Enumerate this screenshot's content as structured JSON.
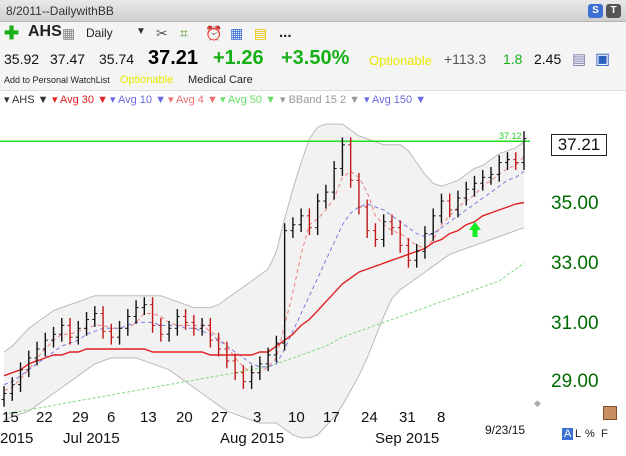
{
  "window": {
    "title": "8/2011--DailywithBB",
    "btn_s": "S",
    "btn_t": "T"
  },
  "toolbar": {
    "symbol": "AHS",
    "period": "Daily",
    "more": "..."
  },
  "quote": {
    "open": "35.92",
    "high": "37.47",
    "low": "35.74",
    "last": "37.21",
    "change": "+1.26",
    "change_pct": "+3.50%",
    "optionable": "Optionable",
    "v1": "+113.3",
    "v2": "1.8",
    "v3": "2.45"
  },
  "subrow": {
    "watchlist": "Add to Personal WatchList",
    "optionable": "Optionable",
    "industry": "Medical Care"
  },
  "legend": [
    {
      "label": "AHS",
      "color": "#333333"
    },
    {
      "label": "Avg 30",
      "color": "#e02020"
    },
    {
      "label": "Avg 10",
      "color": "#6a6ae0"
    },
    {
      "label": "Avg 4",
      "color": "#f07070"
    },
    {
      "label": "Avg 50",
      "color": "#66dd66"
    },
    {
      "label": "BBand 15 2",
      "color": "#9a9a9a"
    },
    {
      "label": "Avg 150",
      "color": "#6a6ae0"
    }
  ],
  "chart": {
    "last_price_box": "37.21",
    "line_label": "37.12",
    "date_label": "9/23/15",
    "price_labels": [
      "35.00",
      "33.00",
      "31.00",
      "29.00"
    ],
    "day_labels": [
      "15",
      "22",
      "29",
      "6",
      "13",
      "20",
      "27",
      "3",
      "10",
      "17",
      "24",
      "31",
      "8"
    ],
    "month_labels": [
      "2015",
      "Jul 2015",
      "Aug 2015",
      "Sep 2015"
    ],
    "scale_opts": [
      "A",
      "L",
      "%",
      "F"
    ],
    "colors": {
      "green_line": "#22dd22",
      "price_text": "#006b00",
      "band_fill": "#f2f2f2"
    }
  },
  "chart_data": {
    "type": "ohlc",
    "ylabels": [
      "35.00",
      "33.00",
      "31.00",
      "29.00"
    ],
    "xlabels": [
      "15",
      "22",
      "29",
      "6",
      "13",
      "20",
      "27",
      "3",
      "10",
      "17",
      "24",
      "31",
      "8"
    ],
    "horizontal_line": 37.12,
    "last": 37.21,
    "closes": [
      28.6,
      28.9,
      29.4,
      29.8,
      30.1,
      30.4,
      30.6,
      30.9,
      30.5,
      30.8,
      31.1,
      31.3,
      30.7,
      30.5,
      30.8,
      31.2,
      31.5,
      31.6,
      30.9,
      30.6,
      30.8,
      31.2,
      31.0,
      30.8,
      30.9,
      30.4,
      30.1,
      29.7,
      29.3,
      29.0,
      29.3,
      29.6,
      29.9,
      30.3,
      34.1,
      34.3,
      34.6,
      34.2,
      35.1,
      35.4,
      36.2,
      37.0,
      35.8,
      34.9,
      34.1,
      33.8,
      34.4,
      34.2,
      33.6,
      33.1,
      33.4,
      34.0,
      34.6,
      35.1,
      34.8,
      35.2,
      35.5,
      35.7,
      35.9,
      36.0,
      36.4,
      36.5,
      36.4,
      37.21
    ],
    "sma30": [
      29.2,
      29.3,
      29.4,
      29.6,
      29.7,
      29.8,
      29.9,
      29.9,
      30.0,
      30.0,
      30.1,
      30.1,
      30.1,
      30.1,
      30.1,
      30.1,
      30.1,
      30.1,
      30.0,
      30.0,
      30.0,
      30.0,
      30.0,
      30.0,
      30.0,
      29.9,
      29.9,
      29.9,
      29.9,
      29.9,
      29.9,
      30.0,
      30.0,
      30.2,
      30.4,
      30.6,
      30.9,
      31.1,
      31.4,
      31.7,
      32.0,
      32.3,
      32.5,
      32.7,
      32.8,
      32.9,
      33.0,
      33.1,
      33.2,
      33.3,
      33.4,
      33.5,
      33.7,
      33.8,
      34.0,
      34.1,
      34.3,
      34.4,
      34.6,
      34.7,
      34.8,
      34.9,
      35.0,
      35.05
    ],
    "sma10": [
      28.9,
      29.0,
      29.2,
      29.4,
      29.6,
      29.8,
      30.0,
      30.2,
      30.3,
      30.4,
      30.6,
      30.7,
      30.8,
      30.8,
      30.8,
      30.9,
      31.0,
      31.0,
      31.0,
      30.9,
      30.9,
      30.9,
      30.8,
      30.8,
      30.7,
      30.6,
      30.4,
      30.2,
      30.0,
      29.8,
      29.6,
      29.5,
      29.5,
      29.6,
      30.1,
      30.7,
      31.3,
      31.9,
      32.5,
      33.1,
      33.7,
      34.3,
      34.7,
      34.9,
      35.0,
      34.9,
      34.8,
      34.6,
      34.4,
      34.2,
      34.0,
      33.9,
      34.0,
      34.2,
      34.4,
      34.6,
      34.8,
      35.0,
      35.2,
      35.4,
      35.6,
      35.8,
      35.9,
      36.1
    ],
    "sma4": [
      28.7,
      28.8,
      29.1,
      29.4,
      29.8,
      30.1,
      30.4,
      30.6,
      30.6,
      30.7,
      30.8,
      30.9,
      30.9,
      30.8,
      30.8,
      30.8,
      31.0,
      31.3,
      31.3,
      31.2,
      31.0,
      30.9,
      30.9,
      30.9,
      30.9,
      30.7,
      30.5,
      30.2,
      29.8,
      29.5,
      29.3,
      29.3,
      29.5,
      29.8,
      30.9,
      32.0,
      33.3,
      34.3,
      34.5,
      34.8,
      35.2,
      35.9,
      36.1,
      35.9,
      35.4,
      34.6,
      34.3,
      34.1,
      34.0,
      33.8,
      33.6,
      33.5,
      33.8,
      34.3,
      34.6,
      34.9,
      35.1,
      35.3,
      35.6,
      35.8,
      36.0,
      36.2,
      36.3,
      36.6
    ],
    "sma50": [
      27.9,
      27.95,
      28.0,
      28.05,
      28.1,
      28.15,
      28.2,
      28.25,
      28.3,
      28.35,
      28.4,
      28.45,
      28.5,
      28.55,
      28.6,
      28.65,
      28.7,
      28.75,
      28.8,
      28.85,
      28.9,
      28.95,
      29.0,
      29.05,
      29.1,
      29.15,
      29.2,
      29.25,
      29.3,
      29.35,
      29.4,
      29.45,
      29.5,
      29.6,
      29.7,
      29.8,
      29.9,
      30.0,
      30.1,
      30.2,
      30.35,
      30.5,
      30.6,
      30.7,
      30.8,
      30.9,
      31.0,
      31.1,
      31.2,
      31.3,
      31.4,
      31.5,
      31.6,
      31.7,
      31.8,
      31.9,
      32.0,
      32.1,
      32.2,
      32.3,
      32.4,
      32.6,
      32.8,
      33.0
    ],
    "bb_upper": [
      30.0,
      30.2,
      30.5,
      30.8,
      31.0,
      31.2,
      31.4,
      31.5,
      31.6,
      31.7,
      31.8,
      31.9,
      31.9,
      31.9,
      31.9,
      31.9,
      31.9,
      31.9,
      31.9,
      31.9,
      31.8,
      31.7,
      31.6,
      31.5,
      31.5,
      31.5,
      31.6,
      31.8,
      32.0,
      32.2,
      32.4,
      32.6,
      32.8,
      33.4,
      34.5,
      35.5,
      36.4,
      37.2,
      37.6,
      37.7,
      37.7,
      37.7,
      37.5,
      37.3,
      37.2,
      37.1,
      37.0,
      37.0,
      37.0,
      36.8,
      36.4,
      36.0,
      35.7,
      35.6,
      35.7,
      35.8,
      36.0,
      36.2,
      36.3,
      36.5,
      36.7,
      36.8,
      36.9,
      37.1
    ],
    "bb_lower": [
      27.7,
      27.8,
      27.9,
      28.0,
      28.2,
      28.4,
      28.6,
      28.8,
      29.0,
      29.2,
      29.4,
      29.6,
      29.7,
      29.8,
      29.8,
      29.8,
      29.8,
      29.7,
      29.6,
      29.5,
      29.4,
      29.2,
      29.0,
      28.8,
      28.6,
      28.4,
      28.2,
      28.0,
      27.9,
      27.8,
      27.7,
      27.6,
      27.6,
      27.6,
      27.4,
      27.2,
      27.1,
      27.1,
      27.2,
      27.5,
      27.8,
      28.2,
      28.7,
      29.2,
      29.8,
      30.5,
      31.2,
      31.8,
      32.1,
      32.3,
      32.5,
      32.7,
      32.9,
      33.1,
      33.3,
      33.4,
      33.5,
      33.6,
      33.7,
      33.8,
      33.9,
      34.0,
      34.1,
      34.2
    ]
  }
}
